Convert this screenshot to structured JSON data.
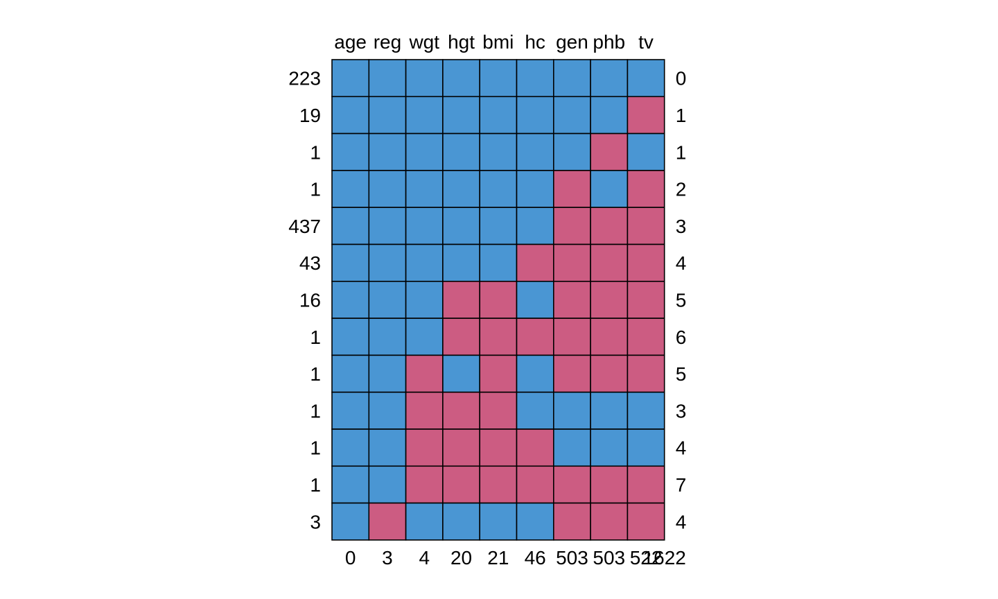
{
  "chart_data": {
    "type": "heatmap",
    "title": "",
    "columns": [
      "age",
      "reg",
      "wgt",
      "hgt",
      "bmi",
      "hc",
      "gen",
      "phb",
      "tv"
    ],
    "column_missing_counts": [
      0,
      3,
      4,
      20,
      21,
      46,
      503,
      503,
      522
    ],
    "total_missing": 1622,
    "pattern_frequencies": [
      223,
      19,
      1,
      1,
      437,
      43,
      16,
      1,
      1,
      1,
      1,
      1,
      3
    ],
    "pattern_missing_counts": [
      0,
      1,
      1,
      2,
      3,
      4,
      5,
      6,
      5,
      3,
      4,
      7,
      4
    ],
    "patterns": [
      [
        1,
        1,
        1,
        1,
        1,
        1,
        1,
        1,
        1
      ],
      [
        1,
        1,
        1,
        1,
        1,
        1,
        1,
        1,
        0
      ],
      [
        1,
        1,
        1,
        1,
        1,
        1,
        1,
        0,
        1
      ],
      [
        1,
        1,
        1,
        1,
        1,
        1,
        0,
        1,
        0
      ],
      [
        1,
        1,
        1,
        1,
        1,
        1,
        0,
        0,
        0
      ],
      [
        1,
        1,
        1,
        1,
        1,
        0,
        0,
        0,
        0
      ],
      [
        1,
        1,
        1,
        0,
        0,
        1,
        0,
        0,
        0
      ],
      [
        1,
        1,
        1,
        0,
        0,
        0,
        0,
        0,
        0
      ],
      [
        1,
        1,
        0,
        1,
        0,
        1,
        0,
        0,
        0
      ],
      [
        1,
        1,
        0,
        0,
        0,
        1,
        1,
        1,
        1
      ],
      [
        1,
        1,
        0,
        0,
        0,
        0,
        1,
        1,
        1
      ],
      [
        1,
        1,
        0,
        0,
        0,
        0,
        0,
        0,
        0
      ],
      [
        1,
        0,
        1,
        1,
        1,
        1,
        0,
        0,
        0
      ]
    ],
    "legend": "none",
    "colors": {
      "observed": "#4a96d3",
      "missing": "#cc5c82",
      "border": "#000000"
    }
  }
}
